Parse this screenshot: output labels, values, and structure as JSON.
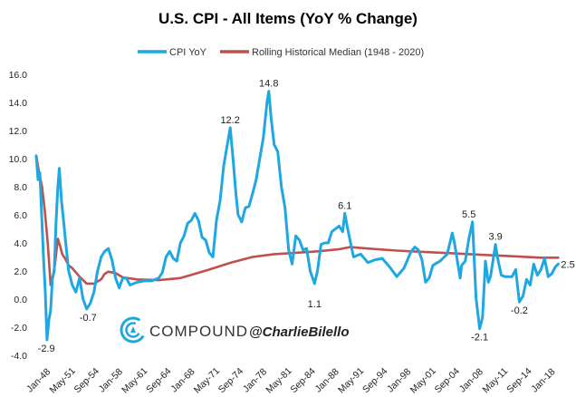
{
  "chart_data": {
    "type": "line",
    "title": "U.S. CPI - All Items (YoY % Change)",
    "ylim": [
      -4,
      16
    ],
    "yticks": [
      "16.0",
      "14.0",
      "12.0",
      "10.0",
      "8.0",
      "6.0",
      "4.0",
      "2.0",
      "0.0",
      "-2.0",
      "-4.0"
    ],
    "xticks": [
      "Jan-48",
      "May-51",
      "Sep-54",
      "Jan-58",
      "May-61",
      "Sep-64",
      "Jan-68",
      "May-71",
      "Sep-74",
      "Jan-78",
      "May-81",
      "Sep-84",
      "Jan-88",
      "May-91",
      "Sep-94",
      "Jan-98",
      "May-01",
      "Sep-04",
      "Jan-08",
      "May-11",
      "Sep-14",
      "Jan-18"
    ],
    "xrange": [
      1948.0,
      2020.6
    ],
    "grid": false,
    "legend_position": "top",
    "colors": {
      "cpi": "#1fa8e0",
      "median": "#c0504d"
    },
    "series": [
      {
        "name": "CPI YoY",
        "x": [
          1948.0,
          1948.25,
          1948.5,
          1948.75,
          1949.0,
          1949.25,
          1949.5,
          1949.75,
          1950.0,
          1950.25,
          1950.5,
          1950.75,
          1951.0,
          1951.2,
          1951.5,
          1951.8,
          1952.0,
          1952.5,
          1953.0,
          1953.5,
          1954.0,
          1954.5,
          1955.0,
          1955.5,
          1956.0,
          1956.5,
          1957.0,
          1957.5,
          1958.0,
          1958.5,
          1959.0,
          1959.5,
          1960.0,
          1960.5,
          1961.0,
          1962.0,
          1963.0,
          1964.0,
          1965.0,
          1965.5,
          1966.0,
          1966.5,
          1967.0,
          1967.5,
          1968.0,
          1968.5,
          1969.0,
          1969.5,
          1970.0,
          1970.5,
          1971.0,
          1971.5,
          1972.0,
          1972.5,
          1973.0,
          1973.5,
          1974.0,
          1974.5,
          1974.9,
          1975.3,
          1975.7,
          1976.0,
          1976.5,
          1977.0,
          1977.5,
          1978.0,
          1978.5,
          1979.0,
          1979.5,
          1980.0,
          1980.25,
          1980.6,
          1981.0,
          1981.5,
          1982.0,
          1982.5,
          1983.0,
          1983.5,
          1984.0,
          1984.5,
          1985.0,
          1985.5,
          1986.0,
          1986.6,
          1987.0,
          1987.5,
          1988.0,
          1988.5,
          1989.0,
          1989.5,
          1990.0,
          1990.5,
          1990.8,
          1991.2,
          1991.6,
          1992.0,
          1992.5,
          1993.0,
          1994.0,
          1995.0,
          1996.0,
          1997.0,
          1998.0,
          1999.0,
          2000.0,
          2000.5,
          2001.0,
          2001.5,
          2002.0,
          2002.5,
          2003.0,
          2004.0,
          2005.0,
          2005.7,
          2006.0,
          2006.8,
          2007.0,
          2007.5,
          2008.0,
          2008.5,
          2009.0,
          2009.5,
          2009.9,
          2010.3,
          2010.7,
          2011.0,
          2011.7,
          2012.0,
          2012.5,
          2013.0,
          2013.5,
          2014.0,
          2014.5,
          2015.0,
          2015.5,
          2016.0,
          2016.5,
          2017.0,
          2017.5,
          2018.0,
          2018.5,
          2019.0,
          2019.5,
          2020.0,
          2020.4
        ],
        "values": [
          10.2,
          8.5,
          9.0,
          6.0,
          3.0,
          0.5,
          -2.9,
          -1.5,
          -0.8,
          1.5,
          2.0,
          5.5,
          8.0,
          9.3,
          7.0,
          5.5,
          4.5,
          2.0,
          1.0,
          0.5,
          1.5,
          0.0,
          -0.7,
          -0.3,
          0.5,
          2.0,
          3.0,
          3.4,
          3.6,
          2.8,
          1.5,
          0.8,
          1.5,
          1.5,
          1.0,
          1.2,
          1.3,
          1.3,
          1.5,
          1.9,
          3.0,
          3.4,
          2.9,
          2.7,
          4.0,
          4.5,
          5.4,
          5.6,
          6.1,
          5.6,
          4.4,
          4.2,
          3.3,
          3.0,
          5.6,
          7.0,
          9.5,
          11.0,
          12.2,
          10.0,
          7.5,
          6.0,
          5.5,
          6.5,
          6.6,
          7.5,
          8.5,
          10.0,
          11.5,
          14.0,
          14.8,
          12.8,
          11.0,
          10.5,
          8.0,
          6.5,
          3.5,
          2.5,
          4.5,
          4.2,
          3.5,
          3.6,
          2.0,
          1.1,
          2.0,
          3.9,
          4.0,
          4.0,
          4.8,
          5.0,
          5.2,
          4.8,
          6.1,
          5.0,
          4.0,
          3.0,
          3.1,
          3.2,
          2.6,
          2.8,
          2.9,
          2.3,
          1.6,
          2.2,
          3.4,
          3.7,
          3.5,
          2.8,
          1.2,
          1.5,
          2.4,
          2.7,
          3.2,
          4.7,
          4.0,
          1.5,
          2.4,
          2.7,
          4.3,
          5.5,
          0.1,
          -2.1,
          -1.3,
          2.7,
          1.2,
          1.6,
          3.9,
          2.9,
          1.7,
          1.6,
          1.6,
          1.6,
          2.1,
          -0.2,
          0.2,
          1.4,
          1.0,
          2.5,
          1.7,
          2.1,
          2.9,
          1.6,
          1.8,
          2.3,
          2.5
        ]
      },
      {
        "name": "Rolling Historical Median (1948 - 2020)",
        "x": [
          1948.0,
          1948.4,
          1948.8,
          1949.2,
          1949.6,
          1950.0,
          1950.3,
          1950.6,
          1951.0,
          1951.3,
          1951.6,
          1952.0,
          1952.5,
          1953.0,
          1954.0,
          1955.0,
          1956.0,
          1957.0,
          1957.5,
          1958.0,
          1959.0,
          1960.0,
          1962.0,
          1965.0,
          1968.0,
          1970.0,
          1972.0,
          1975.0,
          1978.0,
          1981.0,
          1984.0,
          1987.0,
          1990.0,
          1991.5,
          1994.0,
          1998.0,
          2002.0,
          2006.0,
          2010.0,
          2014.0,
          2018.0,
          2020.4
        ],
        "values": [
          10.2,
          9.0,
          8.0,
          6.2,
          4.0,
          1.0,
          1.5,
          2.5,
          4.3,
          3.8,
          3.2,
          2.9,
          2.4,
          2.2,
          1.6,
          1.1,
          1.1,
          1.4,
          1.8,
          1.95,
          1.85,
          1.55,
          1.4,
          1.35,
          1.5,
          1.8,
          2.1,
          2.6,
          3.0,
          3.2,
          3.3,
          3.4,
          3.55,
          3.7,
          3.6,
          3.45,
          3.35,
          3.25,
          3.15,
          3.05,
          2.95,
          2.95
        ]
      }
    ],
    "annotations": [
      {
        "label": "-2.9",
        "x": 1949.4,
        "y": -2.9
      },
      {
        "label": "-0.7",
        "x": 1955.2,
        "y": -0.7
      },
      {
        "label": "12.2",
        "x": 1974.9,
        "y": 12.2
      },
      {
        "label": "14.8",
        "x": 1980.25,
        "y": 14.8
      },
      {
        "label": "1.1",
        "x": 1986.6,
        "y": 1.1
      },
      {
        "label": "6.1",
        "x": 1990.8,
        "y": 6.1
      },
      {
        "label": "5.5",
        "x": 2008.0,
        "y": 5.5
      },
      {
        "label": "-2.1",
        "x": 2009.5,
        "y": -2.1
      },
      {
        "label": "3.9",
        "x": 2011.7,
        "y": 3.9
      },
      {
        "label": "-0.2",
        "x": 2015.0,
        "y": -0.2
      },
      {
        "label": "2.5",
        "x": 2020.4,
        "y": 2.5
      }
    ]
  },
  "branding": {
    "company": "COMPOUND",
    "handle": "@CharlieBilello",
    "logo_icon": "compound-logo-icon"
  }
}
